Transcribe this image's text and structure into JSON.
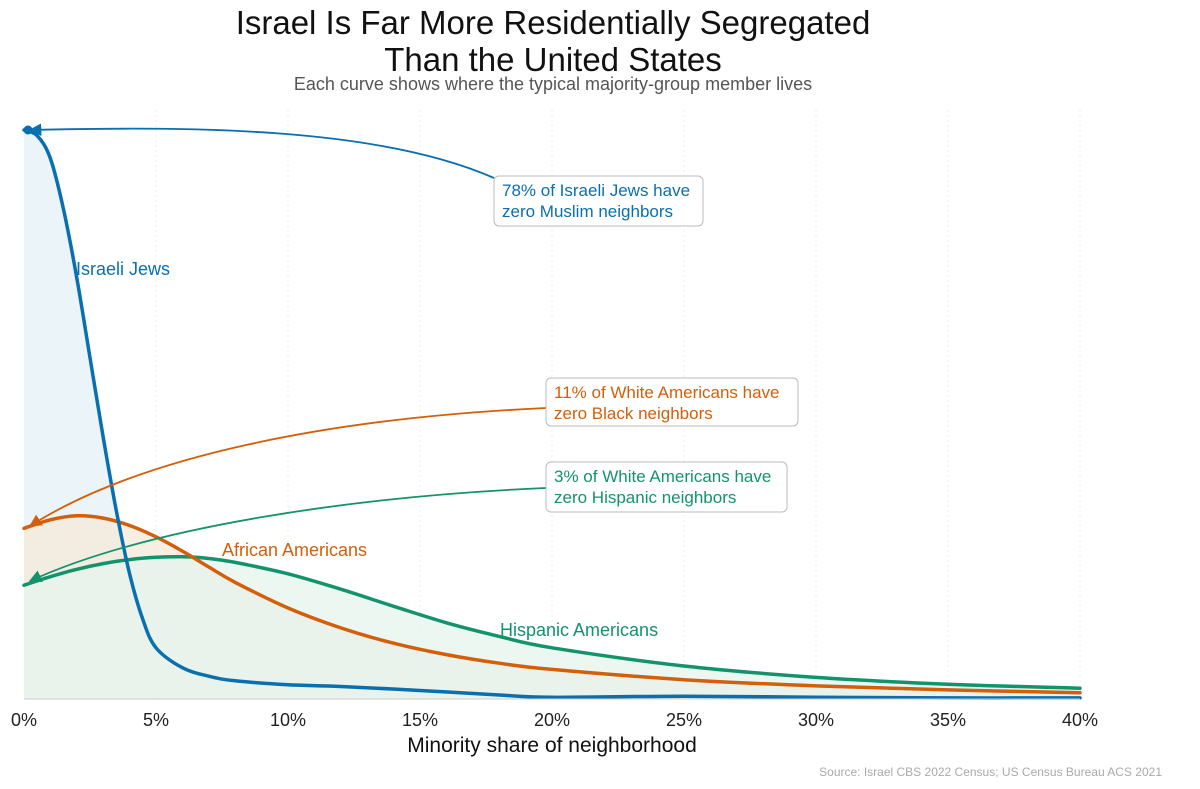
{
  "title_line1": "Israel Is Far More Residentially Segregated",
  "title_line2": "Than the United States",
  "subtitle": "Each curve shows where the typical majority-group member lives",
  "source": "Source: Israel CBS 2022 Census; US Census Bureau ACS 2021",
  "chart_data": {
    "type": "area",
    "xlabel": "Minority share of neighborhood",
    "ylabel": "",
    "xlim": [
      0,
      40
    ],
    "ticks": [
      "0%",
      "5%",
      "10%",
      "15%",
      "20%",
      "25%",
      "30%",
      "35%",
      "40%"
    ],
    "tick_values": [
      0,
      5,
      10,
      15,
      20,
      25,
      30,
      35,
      40
    ],
    "grid": "vertical",
    "series": [
      {
        "name": "Israeli Jews",
        "color": "#0a6fae",
        "fill": "#e3f0f7",
        "x": [
          0,
          0.5,
          1,
          1.5,
          2,
          2.5,
          3,
          3.5,
          4,
          4.5,
          5,
          6,
          7,
          8,
          10,
          12,
          15,
          18,
          20,
          25,
          30,
          35,
          40
        ],
        "y": [
          1.0,
          0.99,
          0.95,
          0.86,
          0.74,
          0.6,
          0.46,
          0.33,
          0.22,
          0.14,
          0.09,
          0.055,
          0.04,
          0.032,
          0.025,
          0.022,
          0.015,
          0.007,
          0.003,
          0.005,
          0.003,
          0.002,
          0.002
        ]
      },
      {
        "name": "African Americans",
        "color": "#d35f0b",
        "fill": "#f4ead8",
        "x": [
          0,
          1,
          2,
          3,
          4,
          5,
          6,
          7,
          8,
          10,
          12,
          14,
          16,
          18,
          20,
          25,
          30,
          35,
          40
        ],
        "y": [
          0.3,
          0.315,
          0.322,
          0.318,
          0.305,
          0.285,
          0.26,
          0.232,
          0.205,
          0.16,
          0.125,
          0.098,
          0.078,
          0.063,
          0.052,
          0.034,
          0.023,
          0.016,
          0.011
        ]
      },
      {
        "name": "Hispanic Americans",
        "color": "#13936b",
        "fill": "#e6f4ee",
        "x": [
          0,
          1,
          2,
          3,
          4,
          5,
          6,
          7,
          8,
          10,
          12,
          14,
          16,
          18,
          20,
          25,
          30,
          35,
          40
        ],
        "y": [
          0.2,
          0.215,
          0.228,
          0.238,
          0.245,
          0.249,
          0.25,
          0.247,
          0.24,
          0.22,
          0.193,
          0.163,
          0.134,
          0.11,
          0.09,
          0.058,
          0.038,
          0.026,
          0.019
        ]
      }
    ],
    "annotations": [
      {
        "series": "Israeli Jews",
        "line1": "78% of Israeli Jews have",
        "line2": "zero Muslim neighbors",
        "color": "#0a6fae"
      },
      {
        "series": "African Americans",
        "line1": "11% of White Americans have",
        "line2": "zero Black neighbors",
        "color": "#d35f0b"
      },
      {
        "series": "Hispanic Americans",
        "line1": "3% of White Americans have",
        "line2": "zero Hispanic neighbors",
        "color": "#13936b"
      }
    ]
  }
}
